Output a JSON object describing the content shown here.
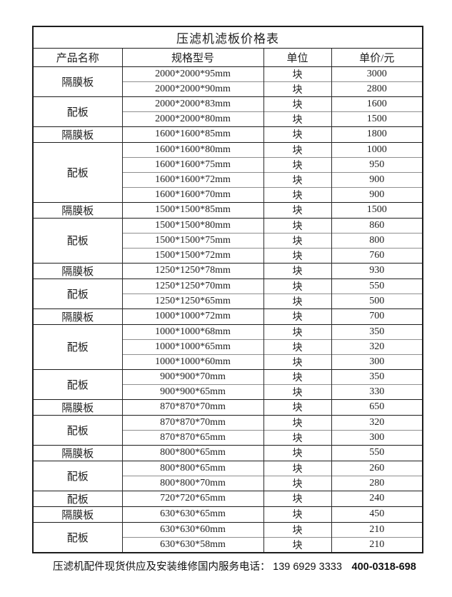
{
  "title": "压滤机滤板价格表",
  "columns": [
    "产品名称",
    "规格型号",
    "单位",
    "单价/元"
  ],
  "groups": [
    {
      "product": "隔膜板",
      "rows": [
        {
          "spec": "2000*2000*95mm",
          "unit": "块",
          "price": "3000"
        },
        {
          "spec": "2000*2000*90mm",
          "unit": "块",
          "price": "2800"
        }
      ]
    },
    {
      "product": "配板",
      "rows": [
        {
          "spec": "2000*2000*83mm",
          "unit": "块",
          "price": "1600"
        },
        {
          "spec": "2000*2000*80mm",
          "unit": "块",
          "price": "1500"
        }
      ]
    },
    {
      "product": "隔膜板",
      "rows": [
        {
          "spec": "1600*1600*85mm",
          "unit": "块",
          "price": "1800"
        }
      ]
    },
    {
      "product": "配板",
      "rows": [
        {
          "spec": "1600*1600*80mm",
          "unit": "块",
          "price": "1000"
        },
        {
          "spec": "1600*1600*75mm",
          "unit": "块",
          "price": "950"
        },
        {
          "spec": "1600*1600*72mm",
          "unit": "块",
          "price": "900"
        },
        {
          "spec": "1600*1600*70mm",
          "unit": "块",
          "price": "900"
        }
      ]
    },
    {
      "product": "隔膜板",
      "rows": [
        {
          "spec": "1500*1500*85mm",
          "unit": "块",
          "price": "1500"
        }
      ]
    },
    {
      "product": "配板",
      "rows": [
        {
          "spec": "1500*1500*80mm",
          "unit": "块",
          "price": "860"
        },
        {
          "spec": "1500*1500*75mm",
          "unit": "块",
          "price": "800"
        },
        {
          "spec": "1500*1500*72mm",
          "unit": "块",
          "price": "760"
        }
      ]
    },
    {
      "product": "隔膜板",
      "rows": [
        {
          "spec": "1250*1250*78mm",
          "unit": "块",
          "price": "930"
        }
      ]
    },
    {
      "product": "配板",
      "rows": [
        {
          "spec": "1250*1250*70mm",
          "unit": "块",
          "price": "550"
        },
        {
          "spec": "1250*1250*65mm",
          "unit": "块",
          "price": "500"
        }
      ]
    },
    {
      "product": "隔膜板",
      "rows": [
        {
          "spec": "1000*1000*72mm",
          "unit": "块",
          "price": "700"
        }
      ]
    },
    {
      "product": "配板",
      "rows": [
        {
          "spec": "1000*1000*68mm",
          "unit": "块",
          "price": "350"
        },
        {
          "spec": "1000*1000*65mm",
          "unit": "块",
          "price": "320"
        },
        {
          "spec": "1000*1000*60mm",
          "unit": "块",
          "price": "300"
        }
      ]
    },
    {
      "product": "配板",
      "rows": [
        {
          "spec": "900*900*70mm",
          "unit": "块",
          "price": "350"
        },
        {
          "spec": "900*900*65mm",
          "unit": "块",
          "price": "330"
        }
      ]
    },
    {
      "product": "隔膜板",
      "rows": [
        {
          "spec": "870*870*70mm",
          "unit": "块",
          "price": "650"
        }
      ]
    },
    {
      "product": "配板",
      "rows": [
        {
          "spec": "870*870*70mm",
          "unit": "块",
          "price": "320"
        },
        {
          "spec": "870*870*65mm",
          "unit": "块",
          "price": "300"
        }
      ]
    },
    {
      "product": "隔膜板",
      "rows": [
        {
          "spec": "800*800*65mm",
          "unit": "块",
          "price": "550"
        }
      ]
    },
    {
      "product": "配板",
      "rows": [
        {
          "spec": "800*800*65mm",
          "unit": "块",
          "price": "260"
        },
        {
          "spec": "800*800*70mm",
          "unit": "块",
          "price": "280"
        }
      ]
    },
    {
      "product": "配板",
      "rows": [
        {
          "spec": "720*720*65mm",
          "unit": "块",
          "price": "240"
        }
      ]
    },
    {
      "product": "隔膜板",
      "rows": [
        {
          "spec": "630*630*65mm",
          "unit": "块",
          "price": "450"
        }
      ]
    },
    {
      "product": "配板",
      "rows": [
        {
          "spec": "630*630*60mm",
          "unit": "块",
          "price": "210"
        },
        {
          "spec": "630*630*58mm",
          "unit": "块",
          "price": "210"
        }
      ]
    }
  ],
  "footer": {
    "text": "压滤机配件现货供应及安装维修国内服务电话：",
    "phone_mobile": "139 6929 3333",
    "phone_hotline": "400-0318-698"
  }
}
